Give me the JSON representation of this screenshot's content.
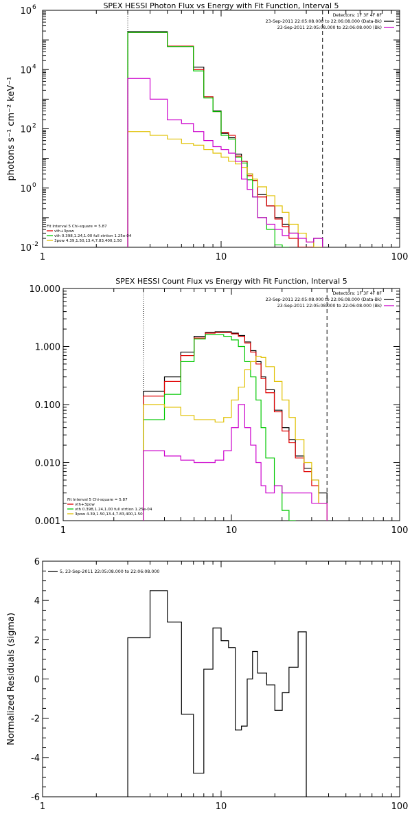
{
  "chart_data": [
    {
      "type": "line",
      "title": "SPEX HESSI Photon Flux vs Energy with Fit Function, Interval 5",
      "ylabel": "photons s⁻¹ cm⁻² keV⁻¹",
      "xscale": "log",
      "yscale": "log",
      "xlim": [
        1,
        100
      ],
      "ylim": [
        0.01,
        1000000
      ],
      "x_ticks": [
        "1",
        "10",
        "100"
      ],
      "y_ticks": [
        {
          "v": 1000000,
          "b": "10",
          "e": "6"
        },
        {
          "v": 10000,
          "b": "10",
          "e": "4"
        },
        {
          "v": 100,
          "b": "10",
          "e": "2"
        },
        {
          "v": 1,
          "b": "10",
          "e": "0"
        },
        {
          "v": 0.01,
          "b": "10",
          "e": "-2"
        }
      ],
      "vlines": [
        {
          "x": 3.0,
          "style": "dotted"
        },
        {
          "x": 37.0,
          "style": "dashed"
        }
      ],
      "legend_tr": [
        {
          "text": "Detectors: 1F 3F 4F 8F",
          "color": "#000000"
        },
        {
          "text": "23-Sep-2011 22:05:08.000 to 22:06:08.000 (Data-Bk)",
          "color": "#000000"
        },
        {
          "text": "23-Sep-2011 22:05:08.000 to 22:06:08.000 (Bk)",
          "color": "#cc00cc"
        }
      ],
      "legend_bl": [
        {
          "text": "Fit Interval 5   Chi-square = 5.87",
          "color": "#000000",
          "line": false
        },
        {
          "text": "vth+3pow",
          "color": "#e00000",
          "line": true
        },
        {
          "text": "vth 0.398,1.24,1.00  full strtion 1.25e-04",
          "color": "#00c800",
          "line": true
        },
        {
          "text": "3pow 4.39,1.50,13.4,7.83,400,1.50",
          "color": "#e0c000",
          "line": true
        }
      ],
      "edges": [
        3.0,
        4.0,
        5.0,
        6.0,
        7.0,
        8.0,
        9.0,
        10.0,
        11.0,
        12.0,
        13.0,
        14.0,
        15.0,
        16.0,
        18.0,
        20.0,
        22.0,
        24.0,
        27.0,
        30.0,
        33.0,
        37.0
      ],
      "series": [
        {
          "color": "#000000",
          "values": [
            190000,
            190000,
            60000,
            60000,
            12000,
            1200,
            400,
            70,
            50,
            14,
            8,
            3,
            1.8,
            0.6,
            0.25,
            0.1,
            0.06,
            0.03,
            0.01,
            0.005,
            0.02
          ]
        },
        {
          "color": "#e00000",
          "values": [
            180000,
            180000,
            62000,
            62000,
            10000,
            1200,
            380,
            75,
            60,
            12,
            8,
            2.6,
            1.8,
            0.5,
            0.25,
            0.09,
            0.05,
            0.02,
            0.01,
            0.005,
            0.008
          ]
        },
        {
          "color": "#00c800",
          "values": [
            180000,
            180000,
            60000,
            60000,
            9000,
            1100,
            380,
            60,
            45,
            11,
            7,
            1.9,
            0.5,
            0.1,
            0.04,
            0.012,
            0.005
          ]
        },
        {
          "color": "#e0c000",
          "values": [
            80,
            60,
            45,
            32,
            28,
            20,
            15,
            11,
            8,
            6.5,
            5,
            3,
            2,
            1.1,
            0.55,
            0.25,
            0.15,
            0.06,
            0.03,
            0.015,
            0.01
          ]
        },
        {
          "color": "#cc00cc",
          "values": [
            5000,
            1000,
            200,
            150,
            80,
            40,
            25,
            20,
            15,
            8,
            2,
            0.9,
            0.5,
            0.1,
            0.06,
            0.04,
            0.025,
            0.03,
            0.02,
            0.015,
            0.02
          ]
        }
      ]
    },
    {
      "type": "line",
      "title": "SPEX HESSI Count Flux vs Energy with Fit Function, Interval 5",
      "ylabel": "",
      "xscale": "log",
      "yscale": "log",
      "xlim": [
        1,
        100
      ],
      "ylim": [
        0.001,
        10
      ],
      "x_ticks": [
        "1",
        "10",
        "100"
      ],
      "y_ticks": [
        {
          "v": 10,
          "b": "10.000",
          "e": ""
        },
        {
          "v": 1,
          "b": "1.000",
          "e": ""
        },
        {
          "v": 0.1,
          "b": "0.100",
          "e": ""
        },
        {
          "v": 0.01,
          "b": "0.010",
          "e": ""
        },
        {
          "v": 0.001,
          "b": "0.001",
          "e": ""
        }
      ],
      "vlines": [
        {
          "x": 3.0,
          "style": "dotted"
        },
        {
          "x": 37.0,
          "style": "dashed"
        }
      ],
      "legend_tr": [
        {
          "text": "Detectors: 1F 3F 4F 8F",
          "color": "#000000"
        },
        {
          "text": "23-Sep-2011 22:05:08.000 to 22:06:08.000 (Data-Bk)",
          "color": "#000000"
        },
        {
          "text": "23-Sep-2011 22:05:08.000 to 22:06:08.000 (Bk)",
          "color": "#cc00cc"
        }
      ],
      "legend_bl": [
        {
          "text": "Fit Interval 5   Chi-square = 5.87",
          "color": "#000000",
          "line": false
        },
        {
          "text": "vth+3pow",
          "color": "#e00000",
          "line": true
        },
        {
          "text": "vth 0.398,1.24,1.00  full strtion 1.25e-04",
          "color": "#00c800",
          "line": true
        },
        {
          "text": "3pow 4.39,1.50,13.4,7.83,400,1.50",
          "color": "#e0c000",
          "line": true
        }
      ],
      "edges": [
        3.0,
        4.0,
        5.0,
        6.0,
        7.0,
        8.0,
        9.0,
        10.0,
        11.0,
        12.0,
        13.0,
        14.0,
        15.0,
        16.0,
        18.0,
        20.0,
        22.0,
        24.0,
        27.0,
        30.0,
        33.0,
        37.0
      ],
      "series": [
        {
          "color": "#000000",
          "values": [
            0.17,
            0.3,
            0.8,
            1.5,
            1.75,
            1.8,
            1.8,
            1.7,
            1.55,
            1.2,
            0.85,
            0.55,
            0.3,
            0.18,
            0.08,
            0.04,
            0.025,
            0.013,
            0.008,
            0.005,
            0.003
          ]
        },
        {
          "color": "#e00000",
          "values": [
            0.14,
            0.25,
            0.7,
            1.4,
            1.7,
            1.75,
            1.75,
            1.65,
            1.5,
            1.15,
            0.8,
            0.5,
            0.28,
            0.16,
            0.075,
            0.035,
            0.022,
            0.012,
            0.007,
            0.004,
            0.002
          ]
        },
        {
          "color": "#00c800",
          "values": [
            0.055,
            0.15,
            0.55,
            1.35,
            1.6,
            1.6,
            1.5,
            1.3,
            1.0,
            0.55,
            0.3,
            0.12,
            0.04,
            0.012,
            0.004,
            0.0015,
            0.001
          ]
        },
        {
          "color": "#e0c000",
          "values": [
            0.1,
            0.09,
            0.065,
            0.055,
            0.055,
            0.05,
            0.06,
            0.12,
            0.2,
            0.4,
            0.55,
            0.68,
            0.65,
            0.45,
            0.25,
            0.12,
            0.06,
            0.025,
            0.01,
            0.005,
            0.002
          ]
        },
        {
          "color": "#cc00cc",
          "values": [
            0.016,
            0.013,
            0.011,
            0.01,
            0.01,
            0.011,
            0.016,
            0.04,
            0.1,
            0.04,
            0.02,
            0.01,
            0.004,
            0.003,
            0.004,
            0.003,
            0.003,
            0.003,
            0.003,
            0.002,
            0.002
          ]
        }
      ]
    },
    {
      "type": "line",
      "title": "",
      "ylabel": "Normalized Residuals (sigma)",
      "xscale": "log",
      "yscale": "linear",
      "xlim": [
        1,
        100
      ],
      "ylim": [
        -6,
        6
      ],
      "x_ticks": [
        "1",
        "10",
        "100"
      ],
      "y_ticks": [
        {
          "v": 6,
          "b": "6",
          "e": ""
        },
        {
          "v": 4,
          "b": "4",
          "e": ""
        },
        {
          "v": 2,
          "b": "2",
          "e": ""
        },
        {
          "v": 0,
          "b": "0",
          "e": ""
        },
        {
          "v": -2,
          "b": "-2",
          "e": ""
        },
        {
          "v": -4,
          "b": "-4",
          "e": ""
        },
        {
          "v": -6,
          "b": "-6",
          "e": ""
        }
      ],
      "vlines": [],
      "legend_tr": [],
      "legend_tl": [
        {
          "text": "5, 23-Sep-2011 22:05:08.000 to 22:06:08.000",
          "color": "#000000",
          "line": true
        }
      ],
      "legend_bl": [],
      "edges": [
        3.0,
        4.0,
        5.0,
        6.0,
        7.0,
        8.0,
        9.0,
        10.0,
        11.0,
        12.0,
        13.0,
        14.0,
        15.0,
        16.0,
        18.0,
        20.0,
        22.0,
        24.0,
        27.0,
        30.0,
        33.0,
        37.0
      ],
      "series": [
        {
          "color": "#000000",
          "drop_ends": true,
          "values": [
            2.1,
            4.5,
            2.9,
            -1.8,
            -4.8,
            0.5,
            2.6,
            1.95,
            1.6,
            -2.6,
            -2.4,
            0.0,
            1.4,
            0.3,
            -0.3,
            -1.6,
            -0.7,
            0.6,
            2.4
          ]
        }
      ]
    }
  ]
}
